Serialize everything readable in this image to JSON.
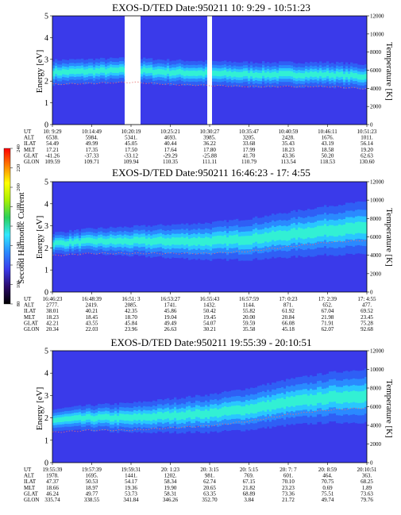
{
  "colors": {
    "plasma": "#3a3aea",
    "band_core": "#32f0d4",
    "colorbar_stops": [
      "#000000",
      "#2a0a6a",
      "#3a3aea",
      "#2a8aff",
      "#32e8ff",
      "#2ad05a",
      "#a8f000",
      "#ffff00",
      "#ff8000",
      "#ff0000"
    ]
  },
  "colorbar": {
    "title": "Second Harmonic Current",
    "ticks": [
      "80",
      "100",
      "120",
      "140",
      "160",
      "180",
      "200",
      "220",
      "240"
    ]
  },
  "chart_data": [
    {
      "type": "heatmap",
      "title": "EXOS-D/TED   Date:950211  10: 9:29 - 10:51:23",
      "ylabel": "Energy [eV]",
      "y2label": "Temperature [K]",
      "ylim": [
        0,
        5
      ],
      "y2lim": [
        0,
        12000
      ],
      "y_ticks": [
        "0",
        "1",
        "2",
        "3",
        "4",
        "5"
      ],
      "y2_ticks": [
        "0",
        "2000",
        "4000",
        "6000",
        "8000",
        "10000",
        "12000"
      ],
      "row_labels": [
        "UT",
        "ALT",
        "ILAT",
        "MLT",
        "GLAT",
        "GLON"
      ],
      "columns": [
        [
          "10: 9:29",
          "6538.",
          "54.49",
          "17.21",
          "-41.26",
          "109.59"
        ],
        [
          "10:14:49",
          "5984.",
          "49.99",
          "17.35",
          "-37.33",
          "109.71"
        ],
        [
          "10:20:19",
          "5341.",
          "45.05",
          "17.50",
          "-33.12",
          "109.94"
        ],
        [
          "10:25:21",
          "4693.",
          "40.44",
          "17.64",
          "-29.29",
          "110.35"
        ],
        [
          "10:30:27",
          "3985.",
          "36.22",
          "17.80",
          "-25.88",
          "111.11"
        ],
        [
          "10:35:47",
          "3205.",
          "33.68",
          "17.99",
          "41.70",
          "110.79"
        ],
        [
          "10:40:59",
          "2428.",
          "35.43",
          "18.23",
          "43.36",
          "113.54"
        ],
        [
          "10:46:11",
          "1676.",
          "43.19",
          "18.58",
          "50.20",
          "118.53"
        ],
        [
          "10:51:23",
          "1011.",
          "56.14",
          "19.20",
          "62.63",
          "130.60"
        ]
      ],
      "band_center_ev": [
        2.4,
        2.45,
        2.5,
        2.4,
        2.35,
        2.3,
        2.3,
        2.3,
        2.2
      ],
      "data_gaps": [
        "10:20:19",
        "10:30:27"
      ]
    },
    {
      "type": "heatmap",
      "title": "EXOS-D/TED   Date:950211  16:46:23 - 17: 4:55",
      "ylabel": "Energy [eV]",
      "y2label": "Temperature [K]",
      "ylim": [
        0,
        5
      ],
      "y2lim": [
        0,
        12000
      ],
      "y_ticks": [
        "0",
        "1",
        "2",
        "3",
        "4",
        "5"
      ],
      "y2_ticks": [
        "0",
        "2000",
        "4000",
        "6000",
        "8000",
        "10000",
        "12000"
      ],
      "row_labels": [
        "UT",
        "ALT",
        "ILAT",
        "MLT",
        "GLAT",
        "GLON"
      ],
      "columns": [
        [
          "16:46:23",
          "2777.",
          "38.01",
          "18.23",
          "42.21",
          "20.34"
        ],
        [
          "16:48:39",
          "2419.",
          "40.21",
          "18.45",
          "43.55",
          "22.03"
        ],
        [
          "16:51: 3",
          "2085.",
          "42.35",
          "18.70",
          "45.84",
          "23.96"
        ],
        [
          "16:53:27",
          "1741.",
          "45.86",
          "19.04",
          "49.49",
          "26.63"
        ],
        [
          "16:55:43",
          "1432.",
          "50.42",
          "19.45",
          "54.07",
          "30.21"
        ],
        [
          "16:57:59",
          "1144.",
          "55.82",
          "20.00",
          "59.59",
          "35.58"
        ],
        [
          "17: 0:23",
          "871.",
          "61.92",
          "20.84",
          "66.08",
          "45.18"
        ],
        [
          "17: 2:39",
          "652.",
          "67.04",
          "21.98",
          "71.91",
          "62.07"
        ],
        [
          "17: 4:55",
          "477.",
          "69.52",
          "23.45",
          "75.28",
          "92.68"
        ]
      ],
      "band_center_ev": [
        2.2,
        2.3,
        2.3,
        2.3,
        2.3,
        2.4,
        2.6,
        2.8,
        2.9
      ]
    },
    {
      "type": "heatmap",
      "title": "EXOS-D/TED   Date:950211  19:55:39 - 20:10:51",
      "ylabel": "Energy [eV]",
      "y2label": "Temperature [K]",
      "ylim": [
        0,
        5
      ],
      "y2lim": [
        0,
        12000
      ],
      "y_ticks": [
        "0",
        "1",
        "2",
        "3",
        "4",
        "5"
      ],
      "y2_ticks": [
        "0",
        "2000",
        "4000",
        "6000",
        "8000",
        "10000",
        "12000"
      ],
      "row_labels": [
        "UT",
        "ALT",
        "ILAT",
        "MLT",
        "GLAT",
        "GLON"
      ],
      "columns": [
        [
          "19:55:39",
          "1978.",
          "47.37",
          "18.66",
          "46.24",
          "335.74"
        ],
        [
          "19:57:39",
          "1695.",
          "50.53",
          "18.97",
          "49.77",
          "338.55"
        ],
        [
          "19:59:31",
          "1441.",
          "54.17",
          "19.36",
          "53.73",
          "341.84"
        ],
        [
          "20: 1:23",
          "1202.",
          "58.34",
          "19.90",
          "58.31",
          "346.26"
        ],
        [
          "20: 3:15",
          "981.",
          "62.74",
          "20.65",
          "63.35",
          "352.70"
        ],
        [
          "20: 5:15",
          "769.",
          "67.15",
          "21.82",
          "68.89",
          "3.84"
        ],
        [
          "20: 7: 7",
          "601.",
          "70.10",
          "23.23",
          "73.36",
          "21.72"
        ],
        [
          "20: 8:59",
          "464.",
          "70.75",
          "0.69",
          "75.51",
          "49.74"
        ],
        [
          "20:10:51",
          "363.",
          "68.25",
          "1.89",
          "73.63",
          "79.76"
        ]
      ],
      "band_center_ev": [
        1.9,
        2.0,
        2.0,
        2.1,
        2.2,
        2.4,
        2.7,
        2.9,
        3.0
      ]
    }
  ]
}
